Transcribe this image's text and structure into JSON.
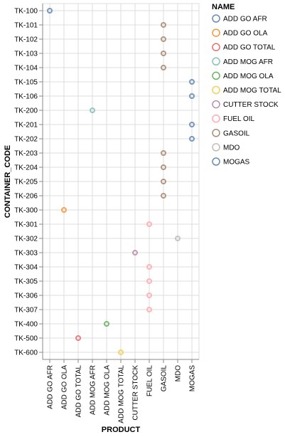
{
  "chart_data": {
    "type": "scatter",
    "xlabel": "PRODUCT",
    "ylabel": "CONTAINER_CODE",
    "x_categories": [
      "ADD GO AFR",
      "ADD GO OLA",
      "ADD GO TOTAL",
      "ADD MOG AFR",
      "ADD MOG OLA",
      "ADD MOG TOTAL",
      "CUTTER STOCK",
      "FUEL OIL",
      "GASOIL",
      "MDO",
      "MOGAS"
    ],
    "y_categories": [
      "TK-100",
      "TK-101",
      "TK-102",
      "TK-103",
      "TK-104",
      "TK-105",
      "TK-106",
      "TK-200",
      "TK-201",
      "TK-202",
      "TK-203",
      "TK-204",
      "TK-205",
      "TK-206",
      "TK-300",
      "TK-301",
      "TK-302",
      "TK-303",
      "TK-304",
      "TK-305",
      "TK-306",
      "TK-307",
      "TK-400",
      "TK-500",
      "TK-600"
    ],
    "grid": true,
    "legend": {
      "title": "NAME",
      "placement": "right",
      "items": [
        {
          "name": "ADD GO AFR",
          "color": "#4c78a8"
        },
        {
          "name": "ADD GO OLA",
          "color": "#f58518"
        },
        {
          "name": "ADD GO TOTAL",
          "color": "#e45756"
        },
        {
          "name": "ADD MOG AFR",
          "color": "#72b7b2"
        },
        {
          "name": "ADD MOG OLA",
          "color": "#54a24b"
        },
        {
          "name": "ADD MOG TOTAL",
          "color": "#eeca3b"
        },
        {
          "name": "CUTTER STOCK",
          "color": "#b279a2"
        },
        {
          "name": "FUEL OIL",
          "color": "#ff9da6"
        },
        {
          "name": "GASOIL",
          "color": "#9d755d"
        },
        {
          "name": "MDO",
          "color": "#bab0ac"
        },
        {
          "name": "MOGAS",
          "color": "#4c78a8"
        }
      ]
    },
    "points": [
      {
        "x": "ADD GO AFR",
        "y": "TK-100",
        "name": "ADD GO AFR"
      },
      {
        "x": "GASOIL",
        "y": "TK-101",
        "name": "GASOIL"
      },
      {
        "x": "GASOIL",
        "y": "TK-102",
        "name": "GASOIL"
      },
      {
        "x": "GASOIL",
        "y": "TK-103",
        "name": "GASOIL"
      },
      {
        "x": "GASOIL",
        "y": "TK-104",
        "name": "GASOIL"
      },
      {
        "x": "MOGAS",
        "y": "TK-105",
        "name": "MOGAS"
      },
      {
        "x": "MOGAS",
        "y": "TK-106",
        "name": "MOGAS"
      },
      {
        "x": "ADD MOG AFR",
        "y": "TK-200",
        "name": "ADD MOG AFR"
      },
      {
        "x": "MOGAS",
        "y": "TK-201",
        "name": "MOGAS"
      },
      {
        "x": "MOGAS",
        "y": "TK-202",
        "name": "MOGAS"
      },
      {
        "x": "GASOIL",
        "y": "TK-203",
        "name": "GASOIL"
      },
      {
        "x": "GASOIL",
        "y": "TK-204",
        "name": "GASOIL"
      },
      {
        "x": "GASOIL",
        "y": "TK-205",
        "name": "GASOIL"
      },
      {
        "x": "GASOIL",
        "y": "TK-206",
        "name": "GASOIL"
      },
      {
        "x": "ADD GO OLA",
        "y": "TK-300",
        "name": "ADD GO OLA"
      },
      {
        "x": "FUEL OIL",
        "y": "TK-301",
        "name": "FUEL OIL"
      },
      {
        "x": "MDO",
        "y": "TK-302",
        "name": "MDO"
      },
      {
        "x": "CUTTER STOCK",
        "y": "TK-303",
        "name": "CUTTER STOCK"
      },
      {
        "x": "FUEL OIL",
        "y": "TK-304",
        "name": "FUEL OIL"
      },
      {
        "x": "FUEL OIL",
        "y": "TK-305",
        "name": "FUEL OIL"
      },
      {
        "x": "FUEL OIL",
        "y": "TK-306",
        "name": "FUEL OIL"
      },
      {
        "x": "FUEL OIL",
        "y": "TK-307",
        "name": "FUEL OIL"
      },
      {
        "x": "ADD MOG OLA",
        "y": "TK-400",
        "name": "ADD MOG OLA"
      },
      {
        "x": "ADD GO TOTAL",
        "y": "TK-500",
        "name": "ADD GO TOTAL"
      },
      {
        "x": "ADD MOG TOTAL",
        "y": "TK-600",
        "name": "ADD MOG TOTAL"
      }
    ]
  }
}
